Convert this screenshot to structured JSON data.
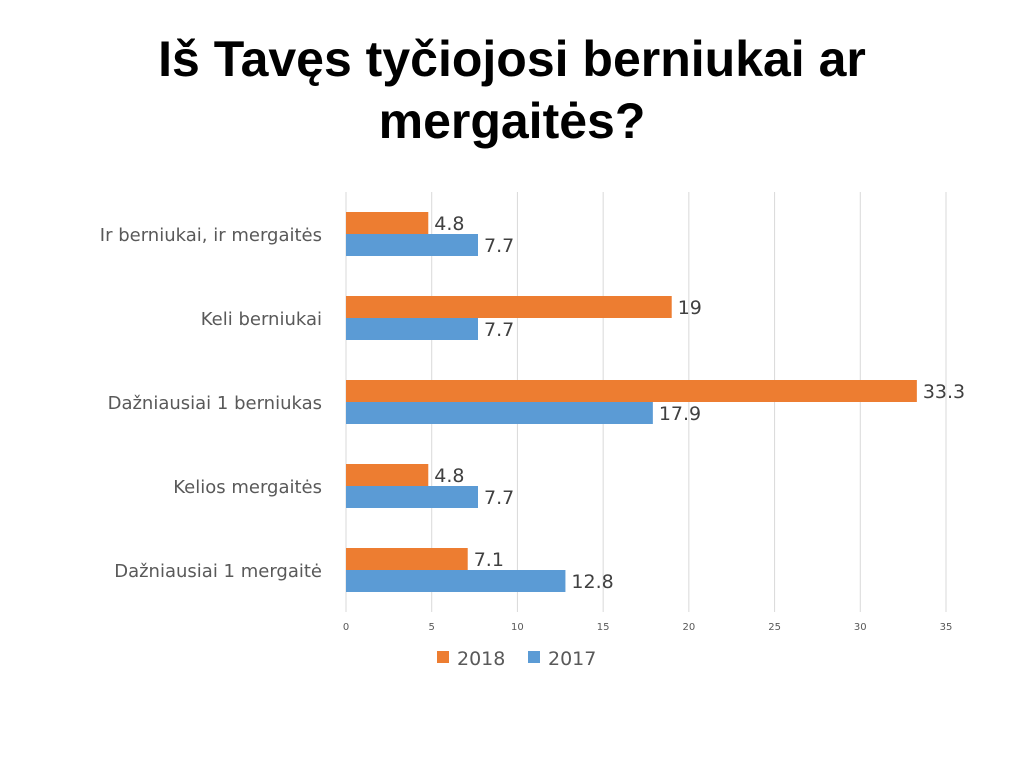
{
  "slide": {
    "title": "Iš Tavęs tyčiojosi berniukai ar mergaitės?"
  },
  "chart_data": {
    "type": "bar",
    "orientation": "horizontal",
    "title": "",
    "xlabel": "",
    "ylabel": "",
    "categories": [
      "Ir berniukai, ir mergaitės",
      "Keli berniukai",
      "Dažniausiai 1 berniukas",
      "Kelios mergaitės",
      "Dažniausiai 1 mergaitė"
    ],
    "series": [
      {
        "name": "2018",
        "color": "#ed7d31",
        "values": [
          4.8,
          19,
          33.3,
          4.8,
          7.1
        ]
      },
      {
        "name": "2017",
        "color": "#5b9bd5",
        "values": [
          7.7,
          7.7,
          17.9,
          7.7,
          12.8
        ]
      }
    ],
    "value_labels": [
      [
        "4.8",
        "19",
        "33.3",
        "4.8",
        "7.1"
      ],
      [
        "7.7",
        "7.7",
        "17.9",
        "7.7",
        "12.8"
      ]
    ],
    "xlim": [
      0,
      35
    ],
    "ticks": [
      0,
      5,
      10,
      15,
      20,
      25,
      30,
      35
    ],
    "tick_labels": [
      "0",
      "5",
      "10",
      "15",
      "20",
      "25",
      "30",
      "35"
    ],
    "grid": true,
    "legend_position": "bottom"
  }
}
